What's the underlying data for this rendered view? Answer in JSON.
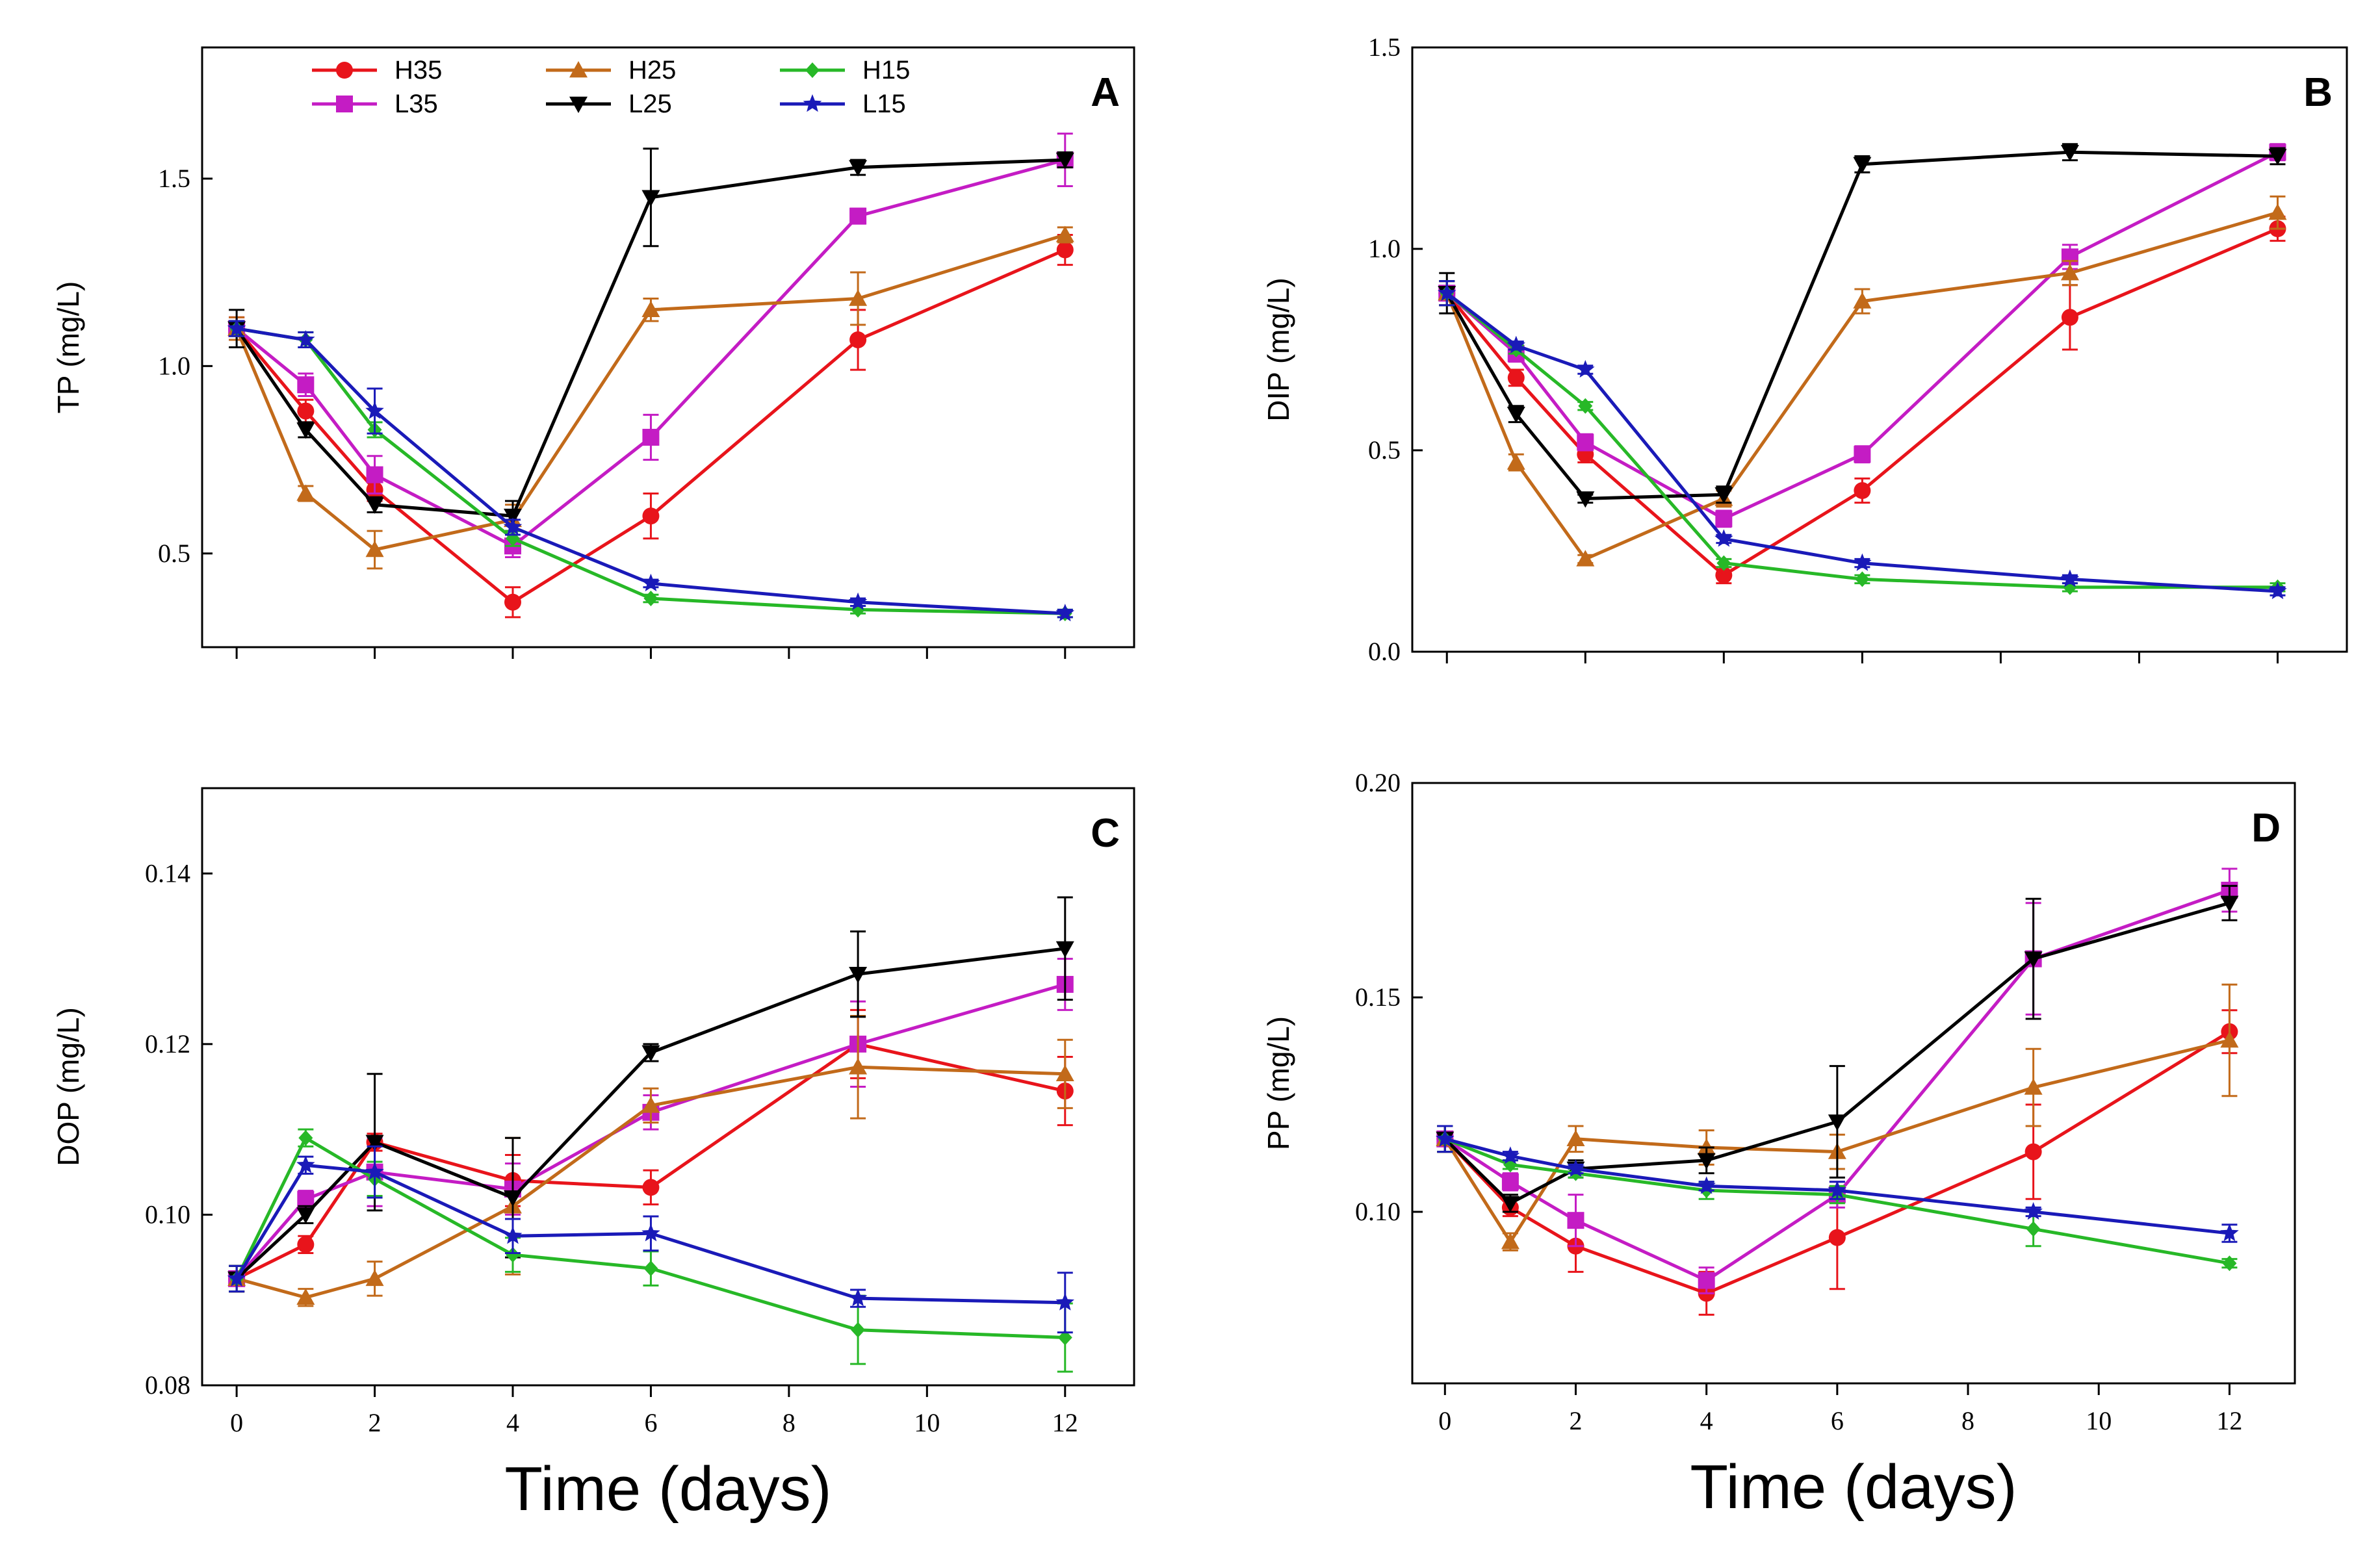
{
  "series_styles": [
    {
      "name": "H35",
      "color": "#e8141b",
      "marker": "circle"
    },
    {
      "name": "L35",
      "color": "#c41cc4",
      "marker": "square"
    },
    {
      "name": "H25",
      "color": "#c26a1a",
      "marker": "triangle-up"
    },
    {
      "name": "L25",
      "color": "#000000",
      "marker": "triangle-down"
    },
    {
      "name": "H15",
      "color": "#27b827",
      "marker": "diamond"
    },
    {
      "name": "L15",
      "color": "#1a1ab8",
      "marker": "star"
    }
  ],
  "chart_data": [
    {
      "type": "line",
      "panel": "A",
      "ylabel": "TP (mg/L)",
      "xlabel": "",
      "ylim": [
        0.25,
        1.85
      ],
      "xlim": [
        -0.5,
        13
      ],
      "x": [
        0,
        1,
        2,
        4,
        6,
        9,
        12
      ],
      "yticks": [
        "0.5",
        "1.0",
        "1.5"
      ],
      "ytick_values": [
        0.5,
        1.0,
        1.5
      ],
      "xticks": [],
      "xtick_values": [
        0,
        2,
        4,
        6,
        8,
        10,
        12
      ],
      "legend_position": "top-left",
      "series": [
        {
          "name": "H35",
          "values": [
            1.1,
            0.88,
            0.67,
            0.37,
            0.6,
            1.07,
            1.31
          ],
          "errors": [
            0.03,
            0.03,
            0.03,
            0.04,
            0.06,
            0.08,
            0.04
          ]
        },
        {
          "name": "L35",
          "values": [
            1.1,
            0.95,
            0.71,
            0.52,
            0.81,
            1.4,
            1.55
          ],
          "errors": [
            0.03,
            0.03,
            0.05,
            0.03,
            0.06,
            0.02,
            0.07
          ]
        },
        {
          "name": "H25",
          "values": [
            1.1,
            0.66,
            0.51,
            0.59,
            1.15,
            1.18,
            1.35
          ],
          "errors": [
            0.03,
            0.02,
            0.05,
            0.04,
            0.03,
            0.07,
            0.02
          ]
        },
        {
          "name": "L25",
          "values": [
            1.1,
            0.83,
            0.63,
            0.6,
            1.45,
            1.53,
            1.55
          ],
          "errors": [
            0.05,
            0.02,
            0.02,
            0.04,
            0.13,
            0.02,
            0.02
          ]
        },
        {
          "name": "H15",
          "values": [
            1.1,
            1.07,
            0.83,
            0.54,
            0.38,
            0.35,
            0.34
          ],
          "errors": [
            0.02,
            0.02,
            0.02,
            0.02,
            0.01,
            0.01,
            0.01
          ]
        },
        {
          "name": "L15",
          "values": [
            1.1,
            1.07,
            0.88,
            0.57,
            0.42,
            0.37,
            0.34
          ],
          "errors": [
            0.02,
            0.02,
            0.06,
            0.02,
            0.01,
            0.01,
            0.01
          ]
        }
      ]
    },
    {
      "type": "line",
      "panel": "B",
      "ylabel": "DIP (mg/L)",
      "xlabel": "",
      "ylim": [
        0.0,
        1.5
      ],
      "xlim": [
        -0.5,
        13
      ],
      "x": [
        0,
        1,
        2,
        4,
        6,
        9,
        12
      ],
      "yticks": [
        "0.0",
        "0.5",
        "1.0",
        "1.5"
      ],
      "ytick_values": [
        0.0,
        0.5,
        1.0,
        1.5
      ],
      "xticks": [],
      "xtick_values": [
        0,
        2,
        4,
        6,
        8,
        10,
        12
      ],
      "series": [
        {
          "name": "H35",
          "values": [
            0.89,
            0.68,
            0.49,
            0.19,
            0.4,
            0.83,
            1.05
          ],
          "errors": [
            0.03,
            0.02,
            0.02,
            0.02,
            0.03,
            0.08,
            0.03
          ]
        },
        {
          "name": "L35",
          "values": [
            0.89,
            0.74,
            0.52,
            0.33,
            0.49,
            0.98,
            1.24
          ],
          "errors": [
            0.03,
            0.02,
            0.02,
            0.02,
            0.02,
            0.03,
            0.02
          ]
        },
        {
          "name": "H25",
          "values": [
            0.89,
            0.47,
            0.23,
            0.38,
            0.87,
            0.94,
            1.09
          ],
          "errors": [
            0.03,
            0.02,
            0.01,
            0.02,
            0.03,
            0.03,
            0.04
          ]
        },
        {
          "name": "L25",
          "values": [
            0.89,
            0.59,
            0.38,
            0.39,
            1.21,
            1.24,
            1.23
          ],
          "errors": [
            0.05,
            0.02,
            0.01,
            0.02,
            0.02,
            0.02,
            0.02
          ]
        },
        {
          "name": "H15",
          "values": [
            0.89,
            0.75,
            0.61,
            0.22,
            0.18,
            0.16,
            0.16
          ],
          "errors": [
            0.03,
            0.01,
            0.01,
            0.01,
            0.01,
            0.01,
            0.01
          ]
        },
        {
          "name": "L15",
          "values": [
            0.89,
            0.76,
            0.7,
            0.28,
            0.22,
            0.18,
            0.15
          ],
          "errors": [
            0.03,
            0.01,
            0.01,
            0.01,
            0.01,
            0.01,
            0.01
          ]
        }
      ]
    },
    {
      "type": "line",
      "panel": "C",
      "ylabel": "DOP (mg/L)",
      "xlabel": "Time (days)",
      "ylim": [
        0.08,
        0.15
      ],
      "xlim": [
        -0.5,
        13
      ],
      "x": [
        0,
        1,
        2,
        4,
        6,
        9,
        12
      ],
      "yticks": [
        "0.08",
        "0.10",
        "0.12",
        "0.14"
      ],
      "ytick_values": [
        0.08,
        0.1,
        0.12,
        0.14
      ],
      "xticks": [
        "0",
        "2",
        "4",
        "6",
        "8",
        "10",
        "12"
      ],
      "xtick_values": [
        0,
        2,
        4,
        6,
        8,
        10,
        12
      ],
      "series": [
        {
          "name": "H35",
          "values": [
            0.0925,
            0.0965,
            0.1085,
            0.104,
            0.1032,
            0.12,
            0.1145
          ],
          "errors": [
            0.0015,
            0.001,
            0.001,
            0.003,
            0.002,
            0.004,
            0.004
          ]
        },
        {
          "name": "L35",
          "values": [
            0.0925,
            0.1018,
            0.105,
            0.103,
            0.112,
            0.12,
            0.127
          ],
          "errors": [
            0.0015,
            0.001,
            0.004,
            0.003,
            0.002,
            0.005,
            0.003
          ]
        },
        {
          "name": "H25",
          "values": [
            0.0925,
            0.0903,
            0.0925,
            0.101,
            0.1128,
            0.1173,
            0.1165
          ],
          "errors": [
            0.0015,
            0.001,
            0.002,
            0.008,
            0.002,
            0.006,
            0.004
          ]
        },
        {
          "name": "L25",
          "values": [
            0.0925,
            0.1,
            0.1085,
            0.102,
            0.119,
            0.1282,
            0.1312
          ],
          "errors": [
            0.0015,
            0.001,
            0.008,
            0.007,
            0.001,
            0.005,
            0.006
          ]
        },
        {
          "name": "H15",
          "values": [
            0.0925,
            0.109,
            0.1042,
            0.0953,
            0.0937,
            0.0865,
            0.0856
          ],
          "errors": [
            0.0015,
            0.001,
            0.002,
            0.002,
            0.002,
            0.004,
            0.004
          ]
        },
        {
          "name": "L15",
          "values": [
            0.0925,
            0.1058,
            0.105,
            0.0975,
            0.0978,
            0.0902,
            0.0897
          ],
          "errors": [
            0.0015,
            0.001,
            0.003,
            0.002,
            0.002,
            0.001,
            0.0035
          ]
        }
      ]
    },
    {
      "type": "line",
      "panel": "D",
      "ylabel": "PP (mg/L)",
      "xlabel": "Time (days)",
      "ylim": [
        0.06,
        0.2
      ],
      "xlim": [
        -0.5,
        13
      ],
      "x": [
        0,
        1,
        2,
        4,
        6,
        9,
        12
      ],
      "yticks": [
        "0.10",
        "0.15",
        "0.20"
      ],
      "ytick_values": [
        0.1,
        0.15,
        0.2
      ],
      "xticks": [
        "0",
        "2",
        "4",
        "6",
        "8",
        "10",
        "12"
      ],
      "xtick_values": [
        0,
        2,
        4,
        6,
        8,
        10,
        12
      ],
      "series": [
        {
          "name": "H35",
          "values": [
            0.117,
            0.101,
            0.092,
            0.081,
            0.094,
            0.114,
            0.142
          ],
          "errors": [
            0.003,
            0.002,
            0.006,
            0.005,
            0.012,
            0.011,
            0.005
          ]
        },
        {
          "name": "L35",
          "values": [
            0.117,
            0.107,
            0.098,
            0.084,
            0.104,
            0.159,
            0.175
          ],
          "errors": [
            0.003,
            0.002,
            0.006,
            0.003,
            0.003,
            0.013,
            0.005
          ]
        },
        {
          "name": "H25",
          "values": [
            0.117,
            0.093,
            0.117,
            0.115,
            0.114,
            0.129,
            0.14
          ],
          "errors": [
            0.003,
            0.002,
            0.003,
            0.004,
            0.004,
            0.009,
            0.013
          ]
        },
        {
          "name": "L25",
          "values": [
            0.117,
            0.102,
            0.11,
            0.112,
            0.121,
            0.159,
            0.172
          ],
          "errors": [
            0.003,
            0.002,
            0.002,
            0.003,
            0.013,
            0.014,
            0.004
          ]
        },
        {
          "name": "H15",
          "values": [
            0.117,
            0.111,
            0.109,
            0.105,
            0.104,
            0.096,
            0.088
          ],
          "errors": [
            0.003,
            0.001,
            0.001,
            0.002,
            0.002,
            0.004,
            0.001
          ]
        },
        {
          "name": "L15",
          "values": [
            0.117,
            0.113,
            0.11,
            0.106,
            0.105,
            0.1,
            0.095
          ],
          "errors": [
            0.003,
            0.001,
            0.001,
            0.001,
            0.002,
            0.001,
            0.002
          ]
        }
      ]
    }
  ]
}
